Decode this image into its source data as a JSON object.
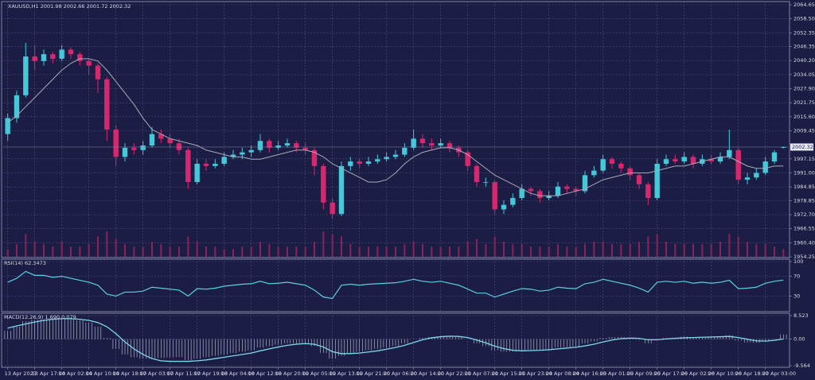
{
  "chart_data": [
    {
      "type": "candlestick",
      "title": "XAUUSD,H1  2001.98 2002.66 2001.72 2002.32",
      "categories": [
        "13 Apr 2023",
        null,
        null,
        "13 Apr 17:00",
        null,
        null,
        "14 Apr 02:00",
        null,
        null,
        "14 Apr 10:00",
        null,
        null,
        "14 Apr 18:00",
        null,
        null,
        "17 Apr 03:00",
        null,
        null,
        "17 Apr 11:00",
        null,
        null,
        "17 Apr 19:00",
        null,
        null,
        "18 Apr 04:00",
        null,
        null,
        "18 Apr 12:00",
        null,
        null,
        "18 Apr 20:00",
        null,
        null,
        "19 Apr 05:00",
        null,
        null,
        "19 Apr 13:00",
        null,
        null,
        "19 Apr 21:00",
        null,
        null,
        "20 Apr 06:00",
        null,
        null,
        "20 Apr 14:00",
        null,
        null,
        "20 Apr 22:00",
        null,
        null,
        "21 Apr 07:00",
        null,
        null,
        "21 Apr 15:00",
        null,
        null,
        "21 Apr 23:00",
        null,
        null,
        "24 Apr 08:00",
        null,
        null,
        "24 Apr 16:00",
        null,
        null,
        "25 Apr 01:00",
        null,
        null,
        "25 Apr 09:00",
        null,
        null,
        "25 Apr 17:00",
        null,
        null,
        "26 Apr 02:00",
        null,
        null,
        "26 Apr 10:00",
        null,
        null,
        "26 Apr 18:00",
        null,
        null,
        "27 Apr 03:00",
        null,
        null
      ],
      "candles": [
        [
          2008,
          2017,
          2005,
          2015
        ],
        [
          2015,
          2027,
          2013,
          2025
        ],
        [
          2025,
          2048,
          2024,
          2042
        ],
        [
          2042,
          2047,
          2036,
          2040
        ],
        [
          2040,
          2045,
          2038,
          2043
        ],
        [
          2043,
          2044,
          2039,
          2041
        ],
        [
          2041,
          2047,
          2040,
          2045
        ],
        [
          2045,
          2046,
          2041,
          2043
        ],
        [
          2043,
          2044,
          2038,
          2040
        ],
        [
          2040,
          2041,
          2034,
          2038
        ],
        [
          2038,
          2039,
          2026,
          2032
        ],
        [
          2032,
          2033,
          2005,
          2010
        ],
        [
          2010,
          2012,
          1994,
          1998
        ],
        [
          1998,
          2004,
          1996,
          2002
        ],
        [
          2002,
          2004,
          1999,
          2001
        ],
        [
          2001,
          2005,
          1999,
          2003
        ],
        [
          2003,
          2011,
          2002,
          2008
        ],
        [
          2008,
          2010,
          2004,
          2006
        ],
        [
          2006,
          2008,
          2002,
          2004
        ],
        [
          2004,
          2006,
          1999,
          2001
        ],
        [
          2001,
          2002,
          1984,
          1987
        ],
        [
          1987,
          1997,
          1986,
          1995
        ],
        [
          1995,
          1997,
          1992,
          1994
        ],
        [
          1994,
          1997,
          1993,
          1995
        ],
        [
          1995,
          2000,
          1994,
          1998
        ],
        [
          1998,
          2001,
          1997,
          1999
        ],
        [
          1999,
          2002,
          1997,
          2000
        ],
        [
          2000,
          2003,
          1998,
          2001
        ],
        [
          2001,
          2008,
          2000,
          2005
        ],
        [
          2005,
          2006,
          2000,
          2002
        ],
        [
          2002,
          2005,
          2001,
          2003
        ],
        [
          2003,
          2006,
          2002,
          2004
        ],
        [
          2004,
          2005,
          2000,
          2002
        ],
        [
          2002,
          2004,
          1999,
          2001
        ],
        [
          2001,
          2002,
          1990,
          1994
        ],
        [
          1994,
          1995,
          1975,
          1978
        ],
        [
          1978,
          1980,
          1971,
          1973
        ],
        [
          1973,
          1996,
          1972,
          1994
        ],
        [
          1994,
          1998,
          1992,
          1996
        ],
        [
          1996,
          1997,
          1993,
          1995
        ],
        [
          1995,
          1998,
          1994,
          1996
        ],
        [
          1996,
          1999,
          1995,
          1997
        ],
        [
          1997,
          2000,
          1996,
          1998
        ],
        [
          1998,
          2001,
          1997,
          1999
        ],
        [
          1999,
          2004,
          1998,
          2002
        ],
        [
          2002,
          2010,
          2001,
          2006
        ],
        [
          2006,
          2008,
          2002,
          2004
        ],
        [
          2004,
          2006,
          2001,
          2003
        ],
        [
          2003,
          2006,
          2002,
          2004
        ],
        [
          2004,
          2005,
          2000,
          2002
        ],
        [
          2002,
          2003,
          1998,
          2000
        ],
        [
          2000,
          2001,
          1992,
          1994
        ],
        [
          1994,
          1995,
          1985,
          1987
        ],
        [
          1987,
          1989,
          1985,
          1987
        ],
        [
          1987,
          1988,
          1973,
          1975
        ],
        [
          1975,
          1979,
          1973,
          1977
        ],
        [
          1977,
          1982,
          1976,
          1980
        ],
        [
          1980,
          1986,
          1979,
          1984
        ],
        [
          1984,
          1985,
          1981,
          1983
        ],
        [
          1983,
          1984,
          1978,
          1980
        ],
        [
          1980,
          1983,
          1979,
          1981
        ],
        [
          1981,
          1987,
          1980,
          1985
        ],
        [
          1985,
          1986,
          1982,
          1984
        ],
        [
          1984,
          1985,
          1981,
          1983
        ],
        [
          1983,
          1992,
          1982,
          1990
        ],
        [
          1990,
          1994,
          1989,
          1992
        ],
        [
          1992,
          1999,
          1991,
          1997
        ],
        [
          1997,
          1998,
          1993,
          1995
        ],
        [
          1995,
          1996,
          1991,
          1993
        ],
        [
          1993,
          1994,
          1988,
          1990
        ],
        [
          1990,
          1991,
          1984,
          1986
        ],
        [
          1986,
          1987,
          1977,
          1980
        ],
        [
          1980,
          1997,
          1979,
          1995
        ],
        [
          1995,
          1999,
          1994,
          1997
        ],
        [
          1997,
          1999,
          1995,
          1996
        ],
        [
          1996,
          2000,
          1995,
          1998
        ],
        [
          1998,
          1999,
          1993,
          1995
        ],
        [
          1995,
          1999,
          1994,
          1997
        ],
        [
          1997,
          1999,
          1995,
          1996
        ],
        [
          1996,
          2000,
          1995,
          1998
        ],
        [
          1998,
          2010,
          1997,
          2001
        ],
        [
          2001,
          2002,
          1986,
          1988
        ],
        [
          1988,
          1991,
          1986,
          1989
        ],
        [
          1989,
          1993,
          1988,
          1991
        ],
        [
          1991,
          1998,
          1990,
          1996
        ],
        [
          1996,
          2001,
          1995,
          2000
        ],
        [
          2001.98,
          2002.66,
          2001.72,
          2002.32
        ]
      ],
      "colors": {
        "up": "#45c8d8",
        "down": "#d7286f"
      },
      "ma": {
        "color": "#a9a9b8",
        "values": [
          2013,
          2016,
          2020,
          2024,
          2028,
          2032,
          2036,
          2039,
          2041,
          2041,
          2040,
          2036,
          2031,
          2026,
          2021,
          2015,
          2010,
          2008,
          2006,
          2005,
          2004,
          2003,
          2001,
          2000,
          1999,
          1998,
          1998,
          1997,
          1997,
          1998,
          1999,
          2000,
          2001,
          2001,
          2000,
          1998,
          1995,
          1993,
          1991,
          1989,
          1987,
          1987,
          1988,
          1991,
          1995,
          1998,
          2000,
          2001,
          2002,
          2002,
          2001,
          1999,
          1996,
          1993,
          1990,
          1988,
          1986,
          1984,
          1982,
          1981,
          1981,
          1981,
          1982,
          1983,
          1984,
          1986,
          1988,
          1989,
          1990,
          1991,
          1991,
          1991,
          1992,
          1993,
          1994,
          1994,
          1995,
          1996,
          1997,
          1998,
          1998,
          1996,
          1994,
          1993,
          1993,
          1994,
          1994
        ]
      },
      "volume": {
        "color": "#8a2357",
        "values": [
          3,
          5,
          9,
          6,
          5,
          4,
          6,
          4,
          4,
          5,
          8,
          10,
          7,
          5,
          4,
          4,
          6,
          5,
          4,
          4,
          8,
          6,
          4,
          4,
          3,
          3,
          4,
          4,
          6,
          5,
          4,
          4,
          4,
          4,
          6,
          10,
          9,
          8,
          5,
          4,
          4,
          4,
          4,
          4,
          5,
          6,
          5,
          4,
          4,
          4,
          4,
          6,
          7,
          5,
          8,
          6,
          5,
          5,
          4,
          4,
          4,
          5,
          4,
          4,
          5,
          6,
          6,
          5,
          5,
          5,
          6,
          8,
          9,
          6,
          5,
          5,
          5,
          5,
          5,
          6,
          9,
          8,
          6,
          5,
          5,
          4,
          3
        ]
      },
      "ylim": [
        1954.25,
        2064.65
      ],
      "yticks": [
        2064.65,
        {
          "value": 2058.5,
          "label": "2058.50"
        },
        2052.35,
        2046.35,
        {
          "value": 2040.2,
          "label": "2040.20"
        },
        2034.05,
        {
          "value": 2027.9,
          "label": "2027.90"
        },
        2021.75,
        {
          "value": 2015.6,
          "label": "2015.60"
        },
        2009.45,
        1997.15,
        {
          "value": 1991,
          "label": "1991.00"
        },
        1984.85,
        1978.85,
        {
          "value": 1972.7,
          "label": "1972.70"
        },
        1966.55,
        {
          "value": 1960.4,
          "label": "1960.40"
        },
        1954.25
      ],
      "grid": true
    },
    {
      "type": "line",
      "title": "RSI(14) 62.3473",
      "series": [
        {
          "color": "#5ccfe0",
          "values": [
            58,
            66,
            80,
            72,
            72,
            68,
            70,
            66,
            62,
            58,
            52,
            34,
            30,
            38,
            38,
            40,
            48,
            46,
            44,
            42,
            30,
            45,
            44,
            46,
            50,
            52,
            54,
            55,
            60,
            55,
            56,
            58,
            55,
            52,
            42,
            28,
            25,
            52,
            54,
            52,
            54,
            55,
            56,
            57,
            60,
            64,
            60,
            58,
            60,
            56,
            52,
            44,
            36,
            36,
            28,
            34,
            40,
            45,
            44,
            40,
            42,
            48,
            46,
            45,
            55,
            58,
            64,
            60,
            56,
            52,
            46,
            38,
            58,
            60,
            58,
            60,
            56,
            58,
            56,
            58,
            62,
            45,
            46,
            48,
            56,
            60,
            62.3473
          ]
        }
      ],
      "ylim": [
        0,
        100
      ],
      "yticks": [
        100,
        70,
        30
      ],
      "grid": true
    },
    {
      "type": "macd",
      "title": "MACD(12,26,9) 1.690 0.079",
      "series": [
        {
          "type": "bar",
          "color": "#c8c8d8",
          "values": [
            3,
            4.5,
            6.5,
            7,
            7.2,
            7.4,
            7.5,
            7.2,
            6.8,
            6,
            4.5,
            0.5,
            -3.5,
            -5.5,
            -6.5,
            -7,
            -7,
            -6.8,
            -6.6,
            -6.5,
            -7.5,
            -7,
            -6.5,
            -6,
            -5.5,
            -5,
            -4.5,
            -4,
            -3,
            -2.5,
            -2,
            -1.5,
            -1.5,
            -1.5,
            -2.5,
            -5,
            -7,
            -6,
            -5,
            -4.5,
            -4,
            -3.5,
            -3,
            -2.5,
            -1.5,
            0,
            0.5,
            0.8,
            1,
            1,
            0.8,
            0,
            -1.5,
            -2.5,
            -4,
            -4.5,
            -4.5,
            -4,
            -3.8,
            -3.8,
            -3.5,
            -3,
            -2.8,
            -2.6,
            -1.5,
            -0.8,
            0.5,
            0.8,
            0.8,
            0.5,
            -0.2,
            -1.5,
            0,
            0.5,
            0.6,
            0.9,
            0.7,
            0.9,
            0.8,
            1,
            1.4,
            -0.5,
            -1.2,
            -1.3,
            -0.6,
            0.1,
            1.69
          ]
        },
        {
          "type": "line",
          "color": "#7fd8ea",
          "values": [
            4,
            4.8,
            5.5,
            6.2,
            6.8,
            7.2,
            7.4,
            7.4,
            7.2,
            6.8,
            6,
            4.5,
            2,
            -1,
            -3.5,
            -5.5,
            -7,
            -7.8,
            -8,
            -8,
            -8,
            -7.8,
            -7.5,
            -7,
            -6.5,
            -6,
            -5.5,
            -5,
            -4.2,
            -3.5,
            -2.8,
            -2.2,
            -1.8,
            -1.6,
            -1.8,
            -2.8,
            -4.5,
            -5.2,
            -5.2,
            -5,
            -4.6,
            -4.2,
            -3.6,
            -3,
            -2.2,
            -1.2,
            -0.2,
            0.5,
            0.9,
            1.1,
            1,
            0.6,
            -0.3,
            -1.3,
            -2.5,
            -3.4,
            -4,
            -4.2,
            -4.1,
            -4,
            -3.8,
            -3.5,
            -3.2,
            -2.9,
            -2.4,
            -1.8,
            -1,
            -0.3,
            0.2,
            0.4,
            0.3,
            -0.2,
            -0.2,
            0.1,
            0.3,
            0.5,
            0.6,
            0.7,
            0.8,
            0.9,
            1,
            0.6,
            0,
            -0.6,
            -0.7,
            -0.4,
            0.079
          ]
        }
      ],
      "ylim": [
        -9.564,
        8.523
      ],
      "yticks": [
        8.523,
        {
          "value": 0,
          "label": "0.00"
        },
        -9.564
      ],
      "grid": true
    }
  ]
}
